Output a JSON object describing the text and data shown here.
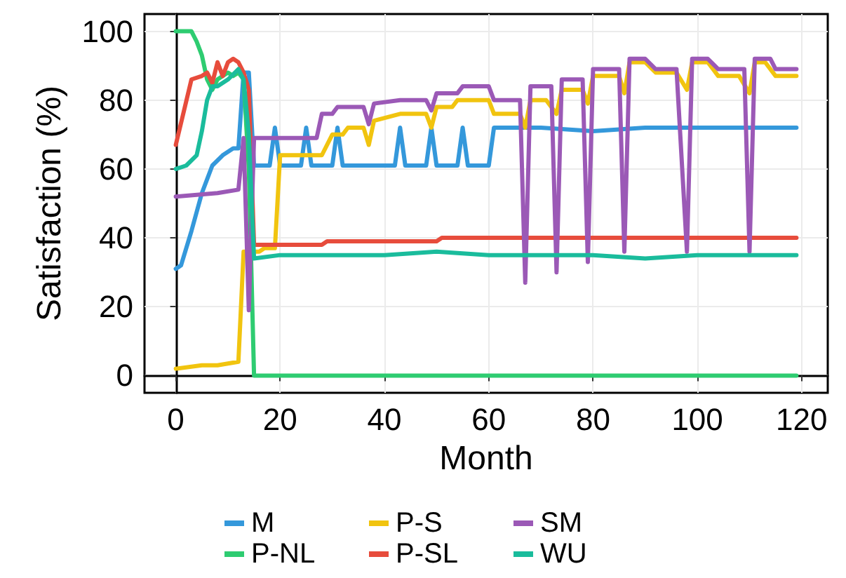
{
  "chart_data": {
    "type": "line",
    "xlabel": "Month",
    "ylabel": "Satisfaction (%)",
    "xlim": [
      -6,
      125
    ],
    "xticks": [
      0,
      20,
      40,
      60,
      80,
      100,
      120
    ],
    "ylim": [
      -5,
      105
    ],
    "yticks": [
      0,
      20,
      40,
      60,
      80,
      100
    ],
    "grid": true,
    "legend": "bottom",
    "marker": "none",
    "line_style": "solid",
    "series": [
      {
        "name": "M",
        "color": "#3498db",
        "x": [
          0,
          1,
          3,
          5,
          7,
          9,
          11,
          12,
          13,
          14,
          15,
          18,
          19,
          20,
          24,
          25,
          26,
          30,
          31,
          32,
          42,
          43,
          44,
          48,
          49,
          50,
          54,
          55,
          56,
          60,
          61,
          70,
          80,
          90,
          100,
          110,
          119
        ],
        "values": [
          31,
          32,
          42,
          53,
          61,
          64,
          66,
          66,
          88,
          88,
          61,
          61,
          72,
          61,
          61,
          72,
          61,
          61,
          72,
          61,
          61,
          72,
          61,
          61,
          72,
          61,
          61,
          72,
          61,
          61,
          72,
          72,
          71,
          72,
          72,
          72,
          72
        ]
      },
      {
        "name": "P-NL",
        "color": "#2ecc71",
        "x": [
          0,
          3,
          4,
          5,
          6,
          7,
          8,
          9,
          10,
          11,
          12,
          13,
          14,
          15,
          119
        ],
        "values": [
          100,
          100,
          97,
          93,
          86,
          83,
          86,
          87,
          88,
          87,
          88,
          86,
          60,
          0,
          0
        ]
      },
      {
        "name": "P-S",
        "color": "#f1c40f",
        "x": [
          0,
          5,
          8,
          12,
          13,
          16,
          17,
          19,
          20,
          28,
          30,
          32,
          33,
          36,
          37,
          38,
          43,
          48,
          49,
          50,
          53,
          54,
          60,
          61,
          66,
          67,
          68,
          71,
          73,
          74,
          78,
          79,
          80,
          85,
          86,
          87,
          90,
          92,
          96,
          98,
          99,
          102,
          104,
          108,
          110,
          111,
          113,
          115,
          119
        ],
        "values": [
          2,
          3,
          3,
          4,
          36,
          36,
          37,
          37,
          64,
          64,
          70,
          70,
          72,
          72,
          67,
          74,
          76,
          76,
          72,
          78,
          78,
          80,
          80,
          76,
          76,
          72,
          80,
          80,
          76,
          83,
          83,
          79,
          87,
          87,
          82,
          91,
          91,
          88,
          88,
          83,
          91,
          91,
          87,
          87,
          82,
          91,
          91,
          87,
          87
        ]
      },
      {
        "name": "P-SL",
        "color": "#e74c3c",
        "x": [
          0,
          3,
          5,
          6,
          7,
          8,
          9,
          10,
          11,
          12,
          13,
          14,
          15,
          28,
          29,
          50,
          51,
          119
        ],
        "values": [
          67,
          86,
          87,
          88,
          85,
          91,
          87,
          91,
          92,
          91,
          88,
          83,
          38,
          38,
          39,
          39,
          40,
          40
        ]
      },
      {
        "name": "SM",
        "color": "#9b59b6",
        "x": [
          0,
          8,
          12,
          13,
          14,
          15,
          27,
          28,
          30,
          31,
          36,
          37,
          38,
          43,
          48,
          49,
          50,
          54,
          55,
          60,
          61,
          66,
          67,
          68,
          72,
          73,
          74,
          78,
          79,
          80,
          85,
          86,
          87,
          90,
          92,
          96,
          98,
          99,
          102,
          104,
          109,
          110,
          111,
          114,
          115,
          119
        ],
        "values": [
          52,
          53,
          54,
          69,
          19,
          69,
          69,
          76,
          76,
          78,
          78,
          73,
          79,
          80,
          80,
          77,
          82,
          82,
          84,
          84,
          80,
          80,
          27,
          84,
          84,
          30,
          86,
          86,
          33,
          89,
          89,
          36,
          92,
          92,
          89,
          89,
          36,
          92,
          92,
          89,
          89,
          36,
          92,
          92,
          89,
          89
        ]
      },
      {
        "name": "WU",
        "color": "#1abc9c",
        "x": [
          0,
          2,
          4,
          5,
          6,
          7,
          8,
          10,
          12,
          13,
          14,
          15,
          20,
          30,
          40,
          50,
          60,
          70,
          80,
          90,
          100,
          110,
          119
        ],
        "values": [
          60,
          61,
          64,
          71,
          80,
          84,
          84,
          86,
          89,
          86,
          70,
          34,
          35,
          35,
          35,
          36,
          35,
          35,
          35,
          34,
          35,
          35,
          35
        ]
      }
    ]
  }
}
